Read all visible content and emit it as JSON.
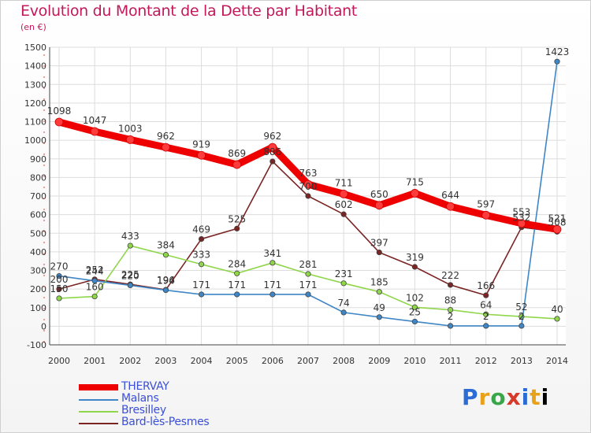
{
  "chart_data": {
    "type": "line",
    "title": "Evolution du Montant de la Dette par Habitant",
    "subtitle": "(en €)",
    "xlabel": "",
    "ylabel": "",
    "x": [
      "2000",
      "2001",
      "2002",
      "2003",
      "2004",
      "2005",
      "2006",
      "2007",
      "2008",
      "2009",
      "2010",
      "2011",
      "2012",
      "2013",
      "2014"
    ],
    "ylim": [
      -100,
      1500
    ],
    "yticks": [
      -100,
      0,
      100,
      200,
      300,
      400,
      500,
      600,
      700,
      800,
      900,
      1000,
      1100,
      1200,
      1300,
      1400,
      1500
    ],
    "grid": true,
    "legend_position": "bottom-left",
    "series": [
      {
        "name": "THERVAY",
        "color": "#ee0000",
        "values": [
          1098,
          1047,
          1003,
          962,
          919,
          869,
          962,
          763,
          711,
          650,
          715,
          644,
          597,
          553,
          521
        ],
        "labels": [
          "1098",
          "1047",
          "1003",
          "962",
          "919",
          "869",
          "962",
          "763",
          "711",
          "650",
          "715",
          "644",
          "597",
          "553",
          "521"
        ]
      },
      {
        "name": "Malans",
        "color": "#3f86c6",
        "values": [
          270,
          244,
          220,
          194,
          171,
          171,
          171,
          171,
          74,
          49,
          25,
          2,
          2,
          2,
          1423
        ],
        "labels": [
          "270",
          "244",
          "220",
          "194",
          "171",
          "171",
          "171",
          "171",
          "74",
          "49",
          "25",
          "2",
          "2",
          "2",
          "1423"
        ]
      },
      {
        "name": "Bresilley",
        "color": "#8fd64a",
        "values": [
          150,
          160,
          433,
          384,
          333,
          284,
          341,
          281,
          231,
          185,
          102,
          88,
          64,
          52,
          40
        ],
        "labels": [
          "150",
          "160",
          "433",
          "384",
          "333",
          "284",
          "341",
          "281",
          "231",
          "185",
          "102",
          "88",
          "64",
          "52",
          "40"
        ]
      },
      {
        "name": "Bard-lès-Pesmes",
        "color": "#7a2424",
        "values": [
          200,
          252,
          225,
          196,
          469,
          525,
          886,
          700,
          602,
          397,
          319,
          222,
          166,
          532,
          508
        ],
        "labels": [
          "200",
          "252",
          "225",
          "196",
          "469",
          "525",
          "886",
          "700",
          "602",
          "397",
          "319",
          "222",
          "166",
          "532",
          "508"
        ]
      }
    ]
  },
  "logo": {
    "letters": [
      "P",
      "r",
      "o",
      "x",
      "i",
      "t",
      "i"
    ]
  }
}
